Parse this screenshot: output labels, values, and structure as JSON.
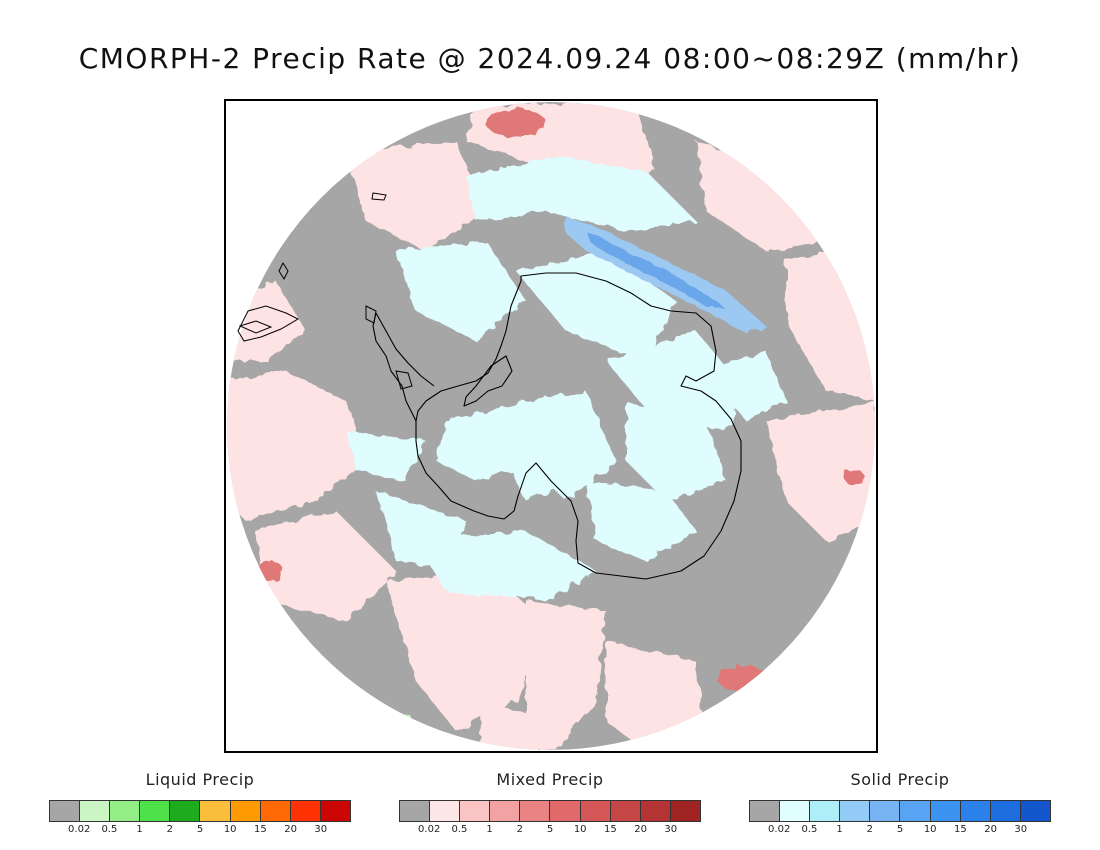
{
  "title": "CMORPH-2 Precip Rate @ 2024.09.24 08:00~08:29Z (mm/hr)",
  "map": {
    "projection": "south-polar-stereographic",
    "region": "Antarctica",
    "colors": {
      "no_precip": "#a6a6a6",
      "ocean_background": "#ffffff",
      "mixed_light": "#fde3e3",
      "mixed_moderate": "#e07878",
      "solid_light": "#dffcff",
      "solid_moderate": "#9cc9f2",
      "solid_heavy": "#6aa6ea",
      "liquid_light": "#c7f5c0",
      "coastline": "#000000"
    }
  },
  "legends": [
    {
      "title": "Liquid Precip",
      "ticks": [
        "0.02",
        "0.5",
        "1",
        "2",
        "5",
        "10",
        "15",
        "20",
        "30"
      ],
      "colors": [
        "#a6a6a6",
        "#ccf5c4",
        "#94ee86",
        "#4ee14a",
        "#1eac1e",
        "#fbbd3c",
        "#ff9a05",
        "#ff6a05",
        "#ff3205",
        "#cc0505"
      ]
    },
    {
      "title": "Mixed Precip",
      "ticks": [
        "0.02",
        "0.5",
        "1",
        "2",
        "5",
        "10",
        "15",
        "20",
        "30"
      ],
      "colors": [
        "#a6a6a6",
        "#fde6e6",
        "#fbc4c4",
        "#f2a2a2",
        "#ea8484",
        "#e06a6a",
        "#d45656",
        "#c44646",
        "#b23434",
        "#a02424"
      ]
    },
    {
      "title": "Solid Precip",
      "ticks": [
        "0.02",
        "0.5",
        "1",
        "2",
        "5",
        "10",
        "15",
        "20",
        "30"
      ],
      "colors": [
        "#a6a6a6",
        "#e0fdff",
        "#aeeef8",
        "#92cbf6",
        "#78b4f4",
        "#58a4f2",
        "#3c94f0",
        "#2c80ea",
        "#1e6ee0",
        "#1456cc"
      ]
    }
  ]
}
